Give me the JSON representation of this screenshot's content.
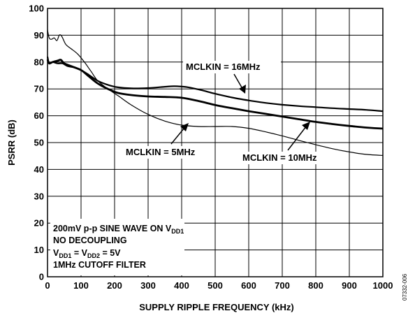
{
  "chart_data": {
    "type": "line",
    "xlabel": "SUPPLY RIPPLE FREQUENCY (kHz)",
    "ylabel": "PSRR (dB)",
    "xlim": [
      0,
      1000
    ],
    "ylim": [
      0,
      100
    ],
    "x_ticks": [
      "0",
      "100",
      "200",
      "300",
      "400",
      "500",
      "600",
      "700",
      "800",
      "900",
      "1000"
    ],
    "y_ticks": [
      "0",
      "10",
      "20",
      "30",
      "40",
      "50",
      "60",
      "70",
      "80",
      "90",
      "100"
    ],
    "grid": true,
    "series": [
      {
        "name": "MCLKIN = 16MHz",
        "points": [
          [
            0,
            82
          ],
          [
            5,
            79.5
          ],
          [
            15,
            80
          ],
          [
            30,
            79.5
          ],
          [
            45,
            79.5
          ],
          [
            60,
            78.5
          ],
          [
            80,
            78
          ],
          [
            100,
            77
          ],
          [
            120,
            75.5
          ],
          [
            150,
            73
          ],
          [
            180,
            71.5
          ],
          [
            210,
            70.6
          ],
          [
            250,
            70.2
          ],
          [
            300,
            70.3
          ],
          [
            350,
            70.8
          ],
          [
            380,
            71
          ],
          [
            420,
            70.6
          ],
          [
            460,
            69.5
          ],
          [
            500,
            68.2
          ],
          [
            550,
            66.8
          ],
          [
            600,
            65.7
          ],
          [
            650,
            64.8
          ],
          [
            700,
            64.1
          ],
          [
            750,
            63.6
          ],
          [
            800,
            63.2
          ],
          [
            850,
            62.8
          ],
          [
            900,
            62.5
          ],
          [
            950,
            62.2
          ],
          [
            1000,
            61.7
          ]
        ]
      },
      {
        "name": "MCLKIN = 10MHz",
        "points": [
          [
            0,
            81
          ],
          [
            5,
            79.5
          ],
          [
            15,
            80
          ],
          [
            30,
            80.5
          ],
          [
            40,
            80.8
          ],
          [
            50,
            79.5
          ],
          [
            70,
            78.5
          ],
          [
            100,
            77
          ],
          [
            120,
            75
          ],
          [
            150,
            72
          ],
          [
            180,
            70
          ],
          [
            210,
            68.5
          ],
          [
            250,
            67.7
          ],
          [
            300,
            67.2
          ],
          [
            350,
            67
          ],
          [
            400,
            66.7
          ],
          [
            450,
            65.5
          ],
          [
            500,
            64
          ],
          [
            550,
            62.8
          ],
          [
            600,
            61.7
          ],
          [
            650,
            60.7
          ],
          [
            700,
            59.7
          ],
          [
            750,
            58.7
          ],
          [
            800,
            57.7
          ],
          [
            850,
            56.9
          ],
          [
            900,
            56.2
          ],
          [
            950,
            55.6
          ],
          [
            1000,
            55.2
          ]
        ]
      },
      {
        "name": "MCLKIN = 5MHz",
        "points": [
          [
            0,
            92
          ],
          [
            5,
            89
          ],
          [
            12,
            88.5
          ],
          [
            20,
            89
          ],
          [
            28,
            88
          ],
          [
            35,
            90
          ],
          [
            40,
            90
          ],
          [
            45,
            89
          ],
          [
            55,
            86.5
          ],
          [
            70,
            85
          ],
          [
            90,
            83
          ],
          [
            110,
            80
          ],
          [
            130,
            76.5
          ],
          [
            150,
            73
          ],
          [
            180,
            70
          ],
          [
            210,
            67.5
          ],
          [
            250,
            64
          ],
          [
            300,
            60.5
          ],
          [
            350,
            58
          ],
          [
            400,
            56.5
          ],
          [
            450,
            56
          ],
          [
            500,
            56
          ],
          [
            550,
            56
          ],
          [
            600,
            55.3
          ],
          [
            650,
            54
          ],
          [
            700,
            52.5
          ],
          [
            750,
            50.8
          ],
          [
            800,
            49.2
          ],
          [
            850,
            47.7
          ],
          [
            900,
            46.5
          ],
          [
            950,
            45.6
          ],
          [
            1000,
            45.2
          ]
        ]
      }
    ],
    "annotations": [
      "MCLKIN = 16MHz",
      "MCLKIN = 10MHz",
      "MCLKIN = 5MHz"
    ],
    "conditions": {
      "line1_main": "200mV p-p SINE WAVE ON V",
      "line1_sub": "DD1",
      "line2": "NO DECOUPLING",
      "line3_v": "V",
      "line3_sub1": "DD1",
      "line3_mid": " = V",
      "line3_sub2": "DD2",
      "line3_end": " = 5V",
      "line4": "1MHz CUTOFF FILTER"
    },
    "figure_id": "07332-006"
  }
}
